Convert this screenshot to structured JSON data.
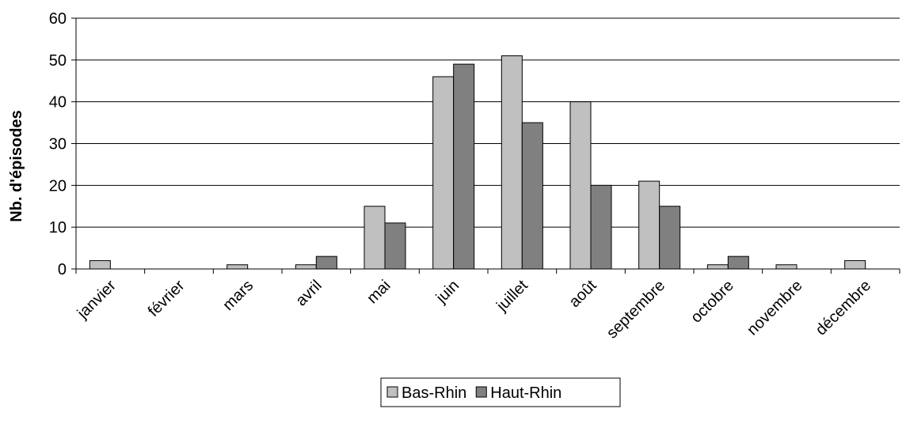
{
  "chart_data": {
    "type": "bar",
    "categories": [
      "janvier",
      "février",
      "mars",
      "avril",
      "mai",
      "juin",
      "juillet",
      "août",
      "septembre",
      "octobre",
      "novembre",
      "décembre"
    ],
    "series": [
      {
        "name": "Bas-Rhin",
        "values": [
          2,
          0,
          1,
          1,
          15,
          46,
          51,
          40,
          21,
          1,
          1,
          2
        ],
        "color": "#c0c0c0"
      },
      {
        "name": "Haut-Rhin",
        "values": [
          0,
          0,
          0,
          3,
          11,
          49,
          35,
          20,
          15,
          3,
          0,
          0
        ],
        "color": "#808080"
      }
    ],
    "xlabel": "",
    "ylabel": "Nb. d'épisodes",
    "ylim": [
      0,
      60
    ],
    "yticks": [
      0,
      10,
      20,
      30,
      40,
      50,
      60
    ],
    "grid": true,
    "legend_position": "bottom"
  }
}
